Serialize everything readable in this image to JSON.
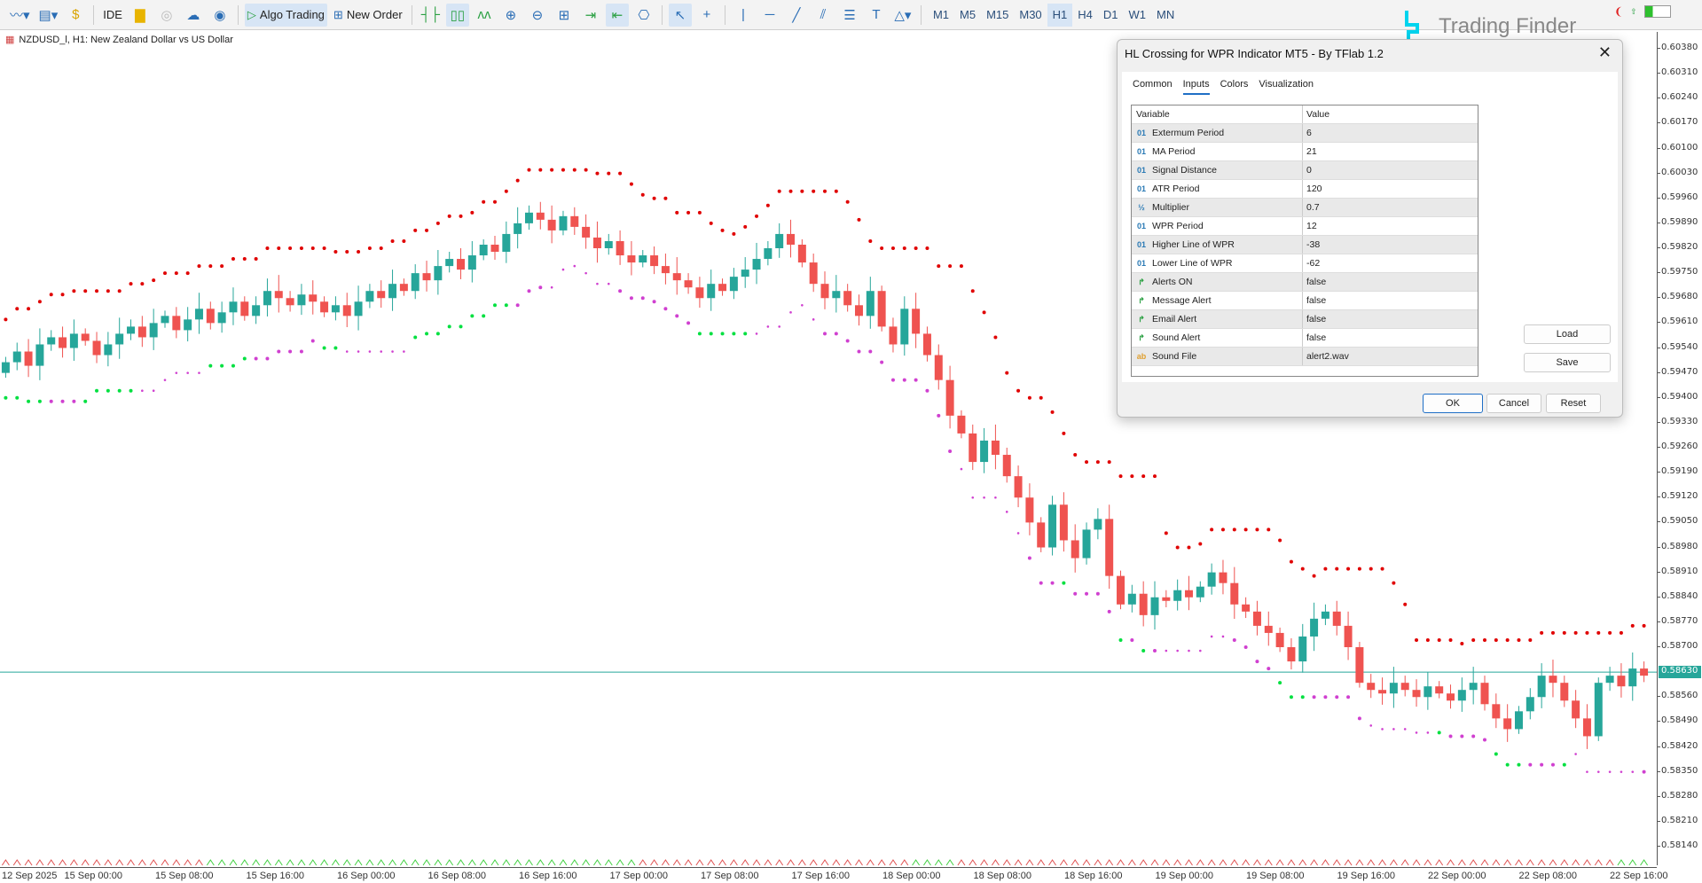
{
  "toolbar": {
    "items": [
      {
        "icon": "line-chart-icon"
      },
      {
        "icon": "chart-template-icon"
      },
      {
        "icon": "dollar-icon"
      },
      {
        "label": "IDE"
      },
      {
        "icon": "shopping-bag-icon"
      },
      {
        "icon": "signal-icon"
      },
      {
        "icon": "cloud-icon"
      },
      {
        "icon": "vps-icon"
      }
    ],
    "algo_trading": "Algo Trading",
    "new_order": "New Order",
    "timeframes": [
      "M1",
      "M5",
      "M15",
      "M30",
      "H1",
      "H4",
      "D1",
      "W1",
      "MN"
    ],
    "active_timeframe": "H1"
  },
  "logo": {
    "text": "Trading Finder",
    "color": "#00d4ee"
  },
  "chart": {
    "symbol_title": "NZDUSD_l, H1:  New Zealand Dollar vs US Dollar",
    "price_labels": [
      "0.60380",
      "0.60310",
      "0.60240",
      "0.60170",
      "0.60100",
      "0.60030",
      "0.59960",
      "0.59890",
      "0.59820",
      "0.59750",
      "0.59680",
      "0.59610",
      "0.59540",
      "0.59470",
      "0.59400",
      "0.59330",
      "0.59260",
      "0.59190",
      "0.59120",
      "0.59050",
      "0.58980",
      "0.58910",
      "0.58840",
      "0.58770",
      "0.58700",
      "0.58560",
      "0.58490",
      "0.58420",
      "0.58350",
      "0.58280",
      "0.58210",
      "0.58140"
    ],
    "current_price": "0.58630",
    "time_labels": [
      "12 Sep 2025",
      "15 Sep 00:00",
      "15 Sep 08:00",
      "15 Sep 16:00",
      "16 Sep 00:00",
      "16 Sep 08:00",
      "16 Sep 16:00",
      "17 Sep 00:00",
      "17 Sep 08:00",
      "17 Sep 16:00",
      "18 Sep 00:00",
      "18 Sep 08:00",
      "18 Sep 16:00",
      "19 Sep 00:00",
      "19 Sep 08:00",
      "19 Sep 16:00",
      "22 Sep 00:00",
      "22 Sep 08:00",
      "22 Sep 16:00"
    ],
    "colors": {
      "bull": "#26a69a",
      "bear": "#ef5350",
      "resistance_dots": "#e00000",
      "support_dots": "#00e040",
      "price_line": "#26a69a"
    },
    "closes": [
      0.595,
      0.5953,
      0.5949,
      0.5955,
      0.5957,
      0.5954,
      0.5958,
      0.5956,
      0.5952,
      0.5955,
      0.5958,
      0.596,
      0.5957,
      0.5961,
      0.5963,
      0.5959,
      0.5962,
      0.5965,
      0.5961,
      0.5964,
      0.5967,
      0.5963,
      0.5966,
      0.597,
      0.5968,
      0.5966,
      0.5969,
      0.5967,
      0.5964,
      0.5966,
      0.5963,
      0.5967,
      0.597,
      0.5968,
      0.5972,
      0.597,
      0.5975,
      0.5973,
      0.5977,
      0.5979,
      0.5976,
      0.598,
      0.5983,
      0.5981,
      0.5986,
      0.5989,
      0.5992,
      0.599,
      0.5987,
      0.5991,
      0.5988,
      0.5985,
      0.5982,
      0.5984,
      0.598,
      0.5978,
      0.598,
      0.5977,
      0.5975,
      0.5973,
      0.5971,
      0.5968,
      0.5972,
      0.597,
      0.5974,
      0.5976,
      0.5979,
      0.5982,
      0.5986,
      0.5983,
      0.5978,
      0.5972,
      0.5968,
      0.597,
      0.5966,
      0.5963,
      0.597,
      0.596,
      0.5955,
      0.5965,
      0.5958,
      0.5952,
      0.5945,
      0.5935,
      0.593,
      0.5922,
      0.5928,
      0.5924,
      0.5918,
      0.5912,
      0.5905,
      0.5898,
      0.591,
      0.59,
      0.5895,
      0.5903,
      0.5906,
      0.589,
      0.5882,
      0.5885,
      0.5879,
      0.5884,
      0.5883,
      0.5886,
      0.5884,
      0.5887,
      0.5891,
      0.5888,
      0.5882,
      0.588,
      0.5876,
      0.5874,
      0.587,
      0.5866,
      0.5873,
      0.5878,
      0.588,
      0.5876,
      0.587,
      0.586,
      0.5858,
      0.5857,
      0.586,
      0.5858,
      0.5856,
      0.5859,
      0.5857,
      0.5855,
      0.5858,
      0.586,
      0.5854,
      0.585,
      0.5847,
      0.5852,
      0.5856,
      0.5862,
      0.586,
      0.5855,
      0.585,
      0.5845,
      0.586,
      0.5862,
      0.5859,
      0.5864,
      0.5862
    ]
  },
  "dialog": {
    "title": "HL Crossing for WPR Indicator MT5 - By TFlab 1.2",
    "tabs": [
      "Common",
      "Inputs",
      "Colors",
      "Visualization"
    ],
    "active_tab": "Inputs",
    "columns": [
      "Variable",
      "Value"
    ],
    "rows": [
      {
        "type": "01",
        "icon": "integer-icon",
        "variable": "Extermum Period",
        "value": "6"
      },
      {
        "type": "01",
        "icon": "integer-icon",
        "variable": "MA Period",
        "value": "21"
      },
      {
        "type": "01",
        "icon": "integer-icon",
        "variable": "Signal Distance",
        "value": "0"
      },
      {
        "type": "01",
        "icon": "integer-icon",
        "variable": "ATR Period",
        "value": "120"
      },
      {
        "type": "½",
        "icon": "double-icon",
        "variable": "Multiplier",
        "value": "0.7"
      },
      {
        "type": "01",
        "icon": "integer-icon",
        "variable": "WPR Period",
        "value": "12"
      },
      {
        "type": "01",
        "icon": "integer-icon",
        "variable": "Higher Line of WPR",
        "value": "-38"
      },
      {
        "type": "01",
        "icon": "integer-icon",
        "variable": "Lower Line of WPR",
        "value": "-62"
      },
      {
        "type": "↱",
        "icon": "bool-icon",
        "variable": "Alerts ON",
        "value": "false"
      },
      {
        "type": "↱",
        "icon": "bool-icon",
        "variable": "Message Alert",
        "value": "false"
      },
      {
        "type": "↱",
        "icon": "bool-icon",
        "variable": "Email Alert",
        "value": "false"
      },
      {
        "type": "↱",
        "icon": "bool-icon",
        "variable": "Sound Alert",
        "value": "false"
      },
      {
        "type": "ab",
        "icon": "string-icon",
        "variable": "Sound File",
        "value": "alert2.wav"
      }
    ],
    "load": "Load",
    "save": "Save",
    "ok": "OK",
    "cancel": "Cancel",
    "reset": "Reset"
  }
}
